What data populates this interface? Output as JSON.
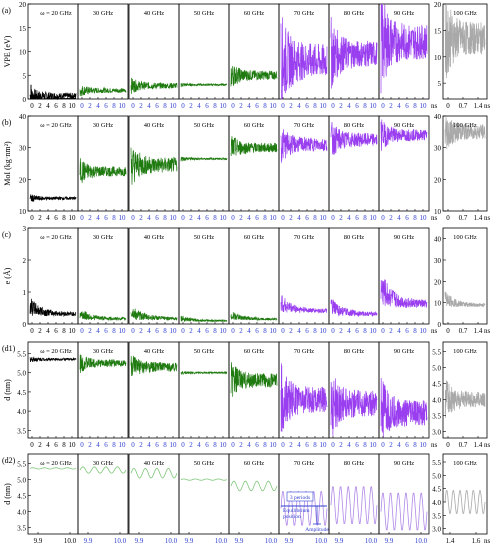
{
  "panel_labels": [
    "(a)",
    "(b)",
    "(c)",
    "(d1)",
    "(d2)"
  ],
  "omega_symbol": "ω",
  "freq_labels": [
    "ω = 20 GHz",
    "30 GHz",
    "40 GHz",
    "50 GHz",
    "60 GHz",
    "70 GHz",
    "80 GHz",
    "90 GHz",
    "100 GHz"
  ],
  "colors": {
    "c20": "#000000",
    "green": "#1f7a10",
    "purple": "#9a3ff0",
    "grey": "#a9a9a9",
    "d2green": "#7fc77a",
    "d2purple": "#b08ae8",
    "annot_blue": "#2f3fd0"
  },
  "xticks_main": [
    "0",
    "2",
    "4",
    "6",
    "8",
    "10"
  ],
  "xunit_main": "ns",
  "xticks_last": [
    "0",
    "0.7",
    "1.4"
  ],
  "xunit_last": "ns",
  "xticks_d2_main": [
    "9.9",
    "10.0"
  ],
  "xticks_d2_last": [
    "1.4",
    "1.6"
  ],
  "xunit_d2_last": "ns",
  "annotations": {
    "three_periods": "3 periods",
    "equilibrium": "Equilibrium\nposition",
    "amplitude": "Amplitude"
  },
  "chart_data": [
    {
      "type": "line",
      "id": "a",
      "ylabel": "VPE (eV)",
      "yticks": [
        "0",
        "5",
        "10",
        "15",
        "20"
      ],
      "ylim": [
        0,
        20
      ],
      "yticks_last": [
        "5",
        "10",
        "15",
        "20"
      ],
      "series": [
        {
          "freq": "20 GHz",
          "center": 0.6,
          "amp": 1.2,
          "decay": true
        },
        {
          "freq": "30 GHz",
          "center": 1.8,
          "amp": 0.8
        },
        {
          "freq": "40 GHz",
          "center": 2.8,
          "amp": 1.0
        },
        {
          "freq": "50 GHz",
          "center": 3.0,
          "amp": 0.3
        },
        {
          "freq": "60 GHz",
          "center": 5.0,
          "amp": 1.6
        },
        {
          "freq": "70 GHz",
          "center": 8.0,
          "amp": 6.0
        },
        {
          "freq": "80 GHz",
          "center": 9.5,
          "amp": 4.5
        },
        {
          "freq": "90 GHz",
          "center": 12.0,
          "amp": 6.0
        },
        {
          "freq": "100 GHz",
          "center": 13.5,
          "amp": 5.0
        }
      ]
    },
    {
      "type": "line",
      "id": "b",
      "ylabel": "MoI (kg·nm²)",
      "yticks": [
        "10",
        "20",
        "30",
        "40"
      ],
      "ylim": [
        10,
        40
      ],
      "yticks_last": [
        "10",
        "20",
        "30",
        "40"
      ],
      "series": [
        {
          "freq": "20 GHz",
          "center": 14.0,
          "amp": 0.8
        },
        {
          "freq": "30 GHz",
          "center": 22.5,
          "amp": 2.5
        },
        {
          "freq": "40 GHz",
          "center": 24.5,
          "amp": 4.0
        },
        {
          "freq": "50 GHz",
          "center": 26.5,
          "amp": 0.5
        },
        {
          "freq": "60 GHz",
          "center": 30.0,
          "amp": 2.5
        },
        {
          "freq": "70 GHz",
          "center": 31.0,
          "amp": 3.5
        },
        {
          "freq": "80 GHz",
          "center": 32.5,
          "amp": 3.5
        },
        {
          "freq": "90 GHz",
          "center": 34.0,
          "amp": 3.0
        },
        {
          "freq": "100 GHz",
          "center": 35.0,
          "amp": 4.0
        }
      ]
    },
    {
      "type": "line",
      "id": "c",
      "ylabel": "e (Å)",
      "yticks": [
        "0",
        "1",
        "2",
        "3"
      ],
      "ylim": [
        0,
        3
      ],
      "yticks_last": [
        "0",
        "10",
        "20",
        "30",
        "40"
      ],
      "series": [
        {
          "freq": "20 GHz",
          "center": 0.25,
          "amp": 0.3
        },
        {
          "freq": "30 GHz",
          "center": 0.12,
          "amp": 0.2
        },
        {
          "freq": "40 GHz",
          "center": 0.12,
          "amp": 0.25
        },
        {
          "freq": "50 GHz",
          "center": 0.08,
          "amp": 0.1
        },
        {
          "freq": "60 GHz",
          "center": 0.12,
          "amp": 0.15
        },
        {
          "freq": "70 GHz",
          "center": 0.35,
          "amp": 0.3
        },
        {
          "freq": "80 GHz",
          "center": 0.25,
          "amp": 0.3
        },
        {
          "freq": "90 GHz",
          "center": 0.5,
          "amp": 0.6
        },
        {
          "freq": "100 GHz",
          "center": 8.0,
          "amp": 4.0
        }
      ]
    },
    {
      "type": "line",
      "id": "d1",
      "ylabel": "d (nm)",
      "yticks": [
        "3.5",
        "4.0",
        "4.5",
        "5.0",
        "5.5"
      ],
      "ylim": [
        3.3,
        5.8
      ],
      "yticks_last": [
        "3.0",
        "3.5",
        "4.0",
        "4.5",
        "5.0",
        "5.5"
      ],
      "series": [
        {
          "freq": "20 GHz",
          "center": 5.35,
          "amp": 0.05
        },
        {
          "freq": "30 GHz",
          "center": 5.25,
          "amp": 0.15
        },
        {
          "freq": "40 GHz",
          "center": 5.15,
          "amp": 0.2
        },
        {
          "freq": "50 GHz",
          "center": 5.0,
          "amp": 0.03
        },
        {
          "freq": "60 GHz",
          "center": 4.8,
          "amp": 0.3
        },
        {
          "freq": "70 GHz",
          "center": 4.3,
          "amp": 0.55
        },
        {
          "freq": "80 GHz",
          "center": 4.2,
          "amp": 0.55
        },
        {
          "freq": "90 GHz",
          "center": 3.95,
          "amp": 0.55
        },
        {
          "freq": "100 GHz",
          "center": 4.0,
          "amp": 0.4
        }
      ]
    },
    {
      "type": "line",
      "id": "d2",
      "ylabel": "d (nm)",
      "yticks": [
        "3.5",
        "4.0",
        "4.5",
        "5.0",
        "5.5"
      ],
      "ylim": [
        3.3,
        5.8
      ],
      "yticks_last": [
        "3.0",
        "3.5",
        "4.0",
        "4.5",
        "5.0",
        "5.5"
      ],
      "series": [
        {
          "freq": "20 GHz",
          "center": 5.35,
          "amp": 0.02
        },
        {
          "freq": "30 GHz",
          "center": 5.3,
          "amp": 0.1
        },
        {
          "freq": "40 GHz",
          "center": 5.2,
          "amp": 0.15
        },
        {
          "freq": "50 GHz",
          "center": 5.0,
          "amp": 0.02
        },
        {
          "freq": "60 GHz",
          "center": 4.8,
          "amp": 0.15
        },
        {
          "freq": "70 GHz",
          "center": 4.1,
          "amp": 0.55
        },
        {
          "freq": "80 GHz",
          "center": 4.2,
          "amp": 0.6
        },
        {
          "freq": "90 GHz",
          "center": 4.0,
          "amp": 0.6
        },
        {
          "freq": "100 GHz",
          "center": 4.0,
          "amp": 0.45
        }
      ]
    }
  ]
}
